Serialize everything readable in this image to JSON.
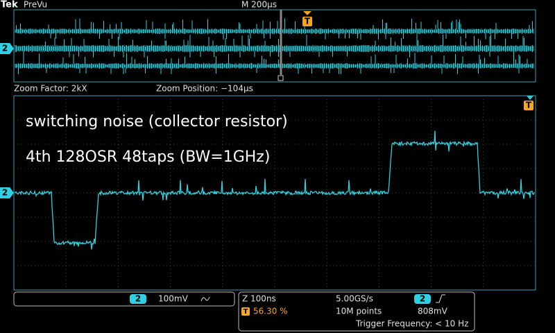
{
  "header": {
    "brand": "Tek",
    "mode": "PreVu",
    "timebase": "M 200µs"
  },
  "overview": {
    "channel": "2",
    "trigger": "T"
  },
  "zoom": {
    "factor": "Zoom Factor: 2kX",
    "position": "Zoom Position: −104µs",
    "channel": "2",
    "trigger": "T"
  },
  "annotations": [
    "switching noise (collector resistor)",
    "4th 128OSR 48taps (BW=1GHz)"
  ],
  "channel_box": {
    "channel": "2",
    "scale": "100mV"
  },
  "acquisition": {
    "zoom": "Z 100ns",
    "sample_rate": "5.00GS/s",
    "record_length": "10M points",
    "trigger_icon": "T",
    "trigger_position": "56.30 %",
    "trigger_channel": "2",
    "trigger_level": "808mV",
    "trigger_frequency": "Trigger Frequency: < 10 Hz"
  }
}
